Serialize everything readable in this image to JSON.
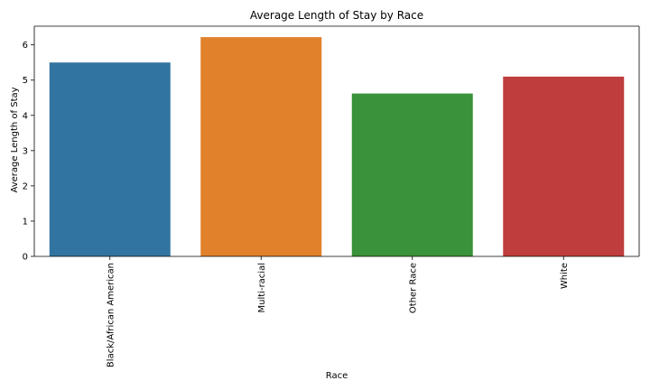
{
  "chart_data": {
    "type": "bar",
    "title": "Average Length of Stay by Race",
    "xlabel": "Race",
    "ylabel": "Average Length of Stay",
    "categories": [
      "Black/African American",
      "Multi-racial",
      "Other Race",
      "White"
    ],
    "values": [
      5.5,
      6.22,
      4.62,
      5.1
    ],
    "colors": [
      "#3274a1",
      "#e1812c",
      "#3a923a",
      "#c03d3e"
    ],
    "ylim": [
      0,
      6.53
    ],
    "yticks": [
      0,
      1,
      2,
      3,
      4,
      5,
      6
    ],
    "grid": false,
    "legend": "none"
  }
}
